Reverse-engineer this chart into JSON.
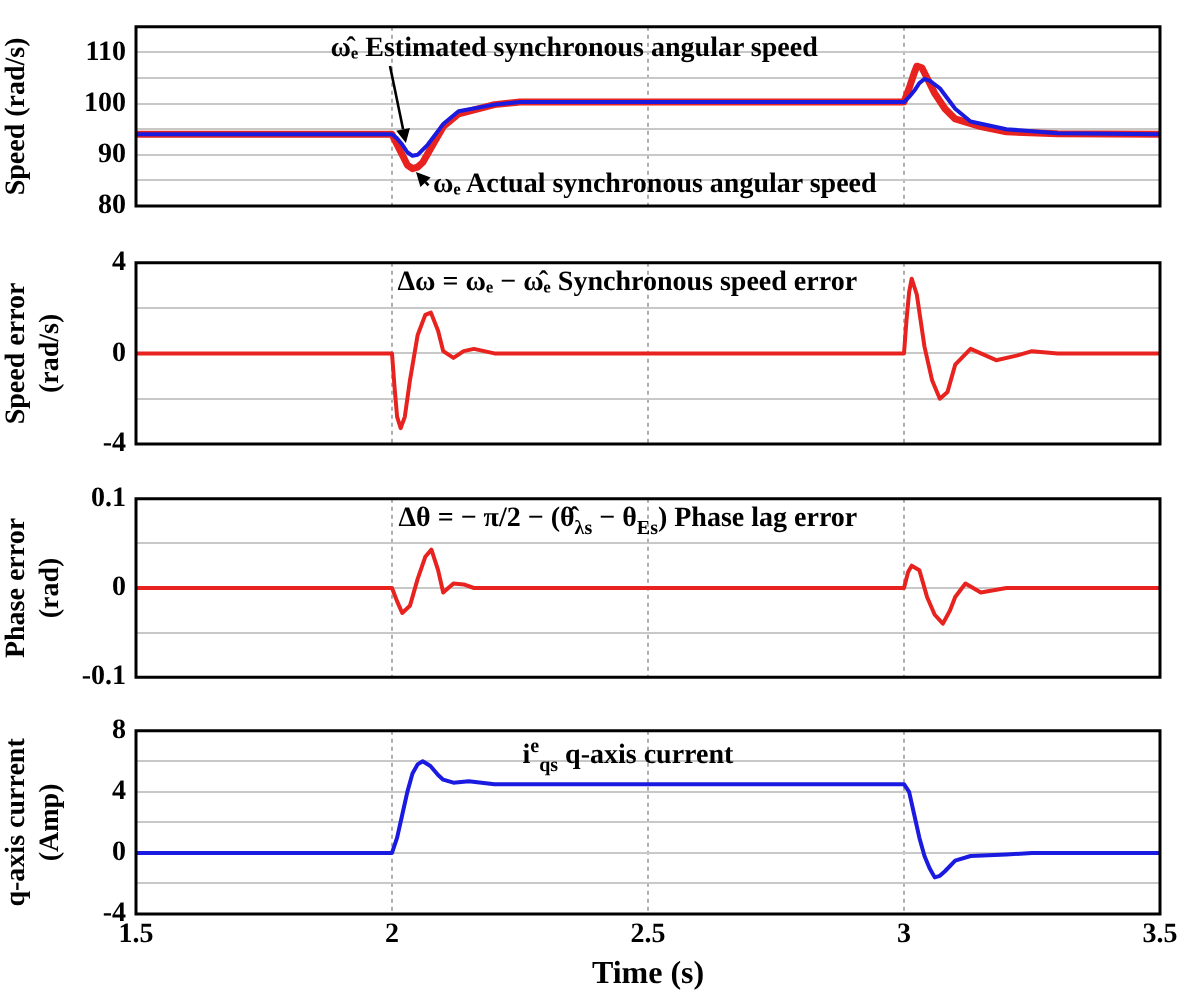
{
  "chart_data": [
    {
      "type": "line",
      "ylabel": "Speed (rad/s)",
      "xlim": [
        1.5,
        3.5
      ],
      "xticks": [
        1.5,
        2,
        2.5,
        3,
        3.5
      ],
      "ylim": [
        80,
        115
      ],
      "yticks": [
        80,
        {
          "value": 85,
          "label": null
        },
        90,
        {
          "value": 95,
          "label": null
        },
        100,
        {
          "value": 105,
          "label": null
        },
        110
      ],
      "grid": true,
      "legend": false,
      "marker": "none",
      "tick_labels": "y",
      "series": [
        {
          "name": "ω̂ₑ Estimated synchronous angular speed",
          "color": "#1a1ae0",
          "x": [
            1.5,
            2.0,
            2.01,
            2.02,
            2.03,
            2.04,
            2.05,
            2.07,
            2.1,
            2.13,
            2.2,
            2.25,
            3.0,
            3.01,
            3.02,
            3.03,
            3.04,
            3.05,
            3.07,
            3.1,
            3.13,
            3.2,
            3.3,
            3.5
          ],
          "values": [
            94,
            94,
            93.2,
            92,
            90.5,
            89.8,
            90,
            92,
            96,
            98.5,
            99.8,
            100.3,
            100.3,
            101.3,
            102.5,
            104,
            104.8,
            104.5,
            103,
            99,
            96.5,
            95,
            94.2,
            94
          ]
        },
        {
          "name": "ωₑ Actual synchronous angular speed",
          "color": "#e8231f",
          "x": [
            1.5,
            2.0,
            2.01,
            2.02,
            2.03,
            2.04,
            2.05,
            2.06,
            2.08,
            2.1,
            2.13,
            2.2,
            2.25,
            3.0,
            3.01,
            3.02,
            3.025,
            3.035,
            3.045,
            3.06,
            3.08,
            3.1,
            3.15,
            3.2,
            3.3,
            3.5
          ],
          "values": [
            94,
            94,
            92,
            90,
            88,
            87.3,
            87.6,
            88.5,
            92,
            95.5,
            98,
            99.8,
            100.3,
            100.3,
            103,
            106,
            107.3,
            107,
            105,
            102,
            99,
            97,
            95.5,
            94.5,
            94.1,
            94
          ]
        }
      ]
    },
    {
      "type": "line",
      "ylabel": "Speed error (rad/s)",
      "xlim": [
        1.5,
        3.5
      ],
      "xticks": [
        1.5,
        2,
        2.5,
        3,
        3.5
      ],
      "ylim": [
        -4,
        4
      ],
      "yticks": [
        -4,
        {
          "value": -2,
          "label": null
        },
        0,
        {
          "value": 2,
          "label": null
        },
        4
      ],
      "grid": true,
      "legend": false,
      "marker": "none",
      "tick_labels": "y",
      "annotations": [
        "Δω = ωₑ − ω̂ₑ  Synchronous speed error"
      ],
      "series": [
        {
          "color": "#e8231f",
          "x": [
            1.5,
            2.0,
            2.005,
            2.01,
            2.017,
            2.025,
            2.035,
            2.05,
            2.065,
            2.076,
            2.09,
            2.1,
            2.12,
            2.14,
            2.16,
            2.18,
            2.2,
            3.0,
            3.005,
            3.01,
            3.015,
            3.025,
            3.04,
            3.055,
            3.07,
            3.085,
            3.1,
            3.13,
            3.15,
            3.18,
            3.22,
            3.25,
            3.3,
            3.5
          ],
          "values": [
            0,
            0,
            -1.5,
            -2.8,
            -3.3,
            -2.8,
            -1.2,
            0.8,
            1.7,
            1.8,
            1,
            0.1,
            -0.2,
            0.1,
            0.2,
            0.1,
            0,
            0,
            1.5,
            2.7,
            3.3,
            2.6,
            0.3,
            -1.2,
            -2,
            -1.7,
            -0.5,
            0.2,
            0,
            -0.3,
            -0.1,
            0.1,
            0,
            0
          ]
        }
      ]
    },
    {
      "type": "line",
      "ylabel": "Phase error (rad)",
      "xlim": [
        1.5,
        3.5
      ],
      "xticks": [
        1.5,
        2,
        2.5,
        3,
        3.5
      ],
      "ylim": [
        -0.1,
        0.1
      ],
      "yticks": [
        -0.1,
        {
          "value": -0.05,
          "label": null
        },
        0,
        {
          "value": 0.05,
          "label": null
        },
        0.1
      ],
      "grid": true,
      "legend": false,
      "marker": "none",
      "tick_labels": "y",
      "annotations": [
        "Δθ = − π/2 − (θ̂$_{λs}$ − θ$_{Es}$)  Phase lag error"
      ],
      "series": [
        {
          "color": "#e8231f",
          "x": [
            1.5,
            2.0,
            2.01,
            2.02,
            2.035,
            2.05,
            2.065,
            2.077,
            2.09,
            2.1,
            2.12,
            2.14,
            2.16,
            2.2,
            3.0,
            3.008,
            3.015,
            3.03,
            3.045,
            3.06,
            3.076,
            3.09,
            3.1,
            3.12,
            3.15,
            3.2,
            3.5
          ],
          "values": [
            0,
            0,
            -0.015,
            -0.028,
            -0.02,
            0.01,
            0.035,
            0.043,
            0.02,
            -0.005,
            0.005,
            0.004,
            0,
            0,
            0,
            0.018,
            0.025,
            0.02,
            -0.01,
            -0.03,
            -0.04,
            -0.025,
            -0.01,
            0.005,
            -0.005,
            0,
            0
          ]
        }
      ]
    },
    {
      "type": "line",
      "ylabel": "q-axis current (Amp)",
      "xlabel": "Time (s)",
      "xlim": [
        1.5,
        3.5
      ],
      "xticks": [
        1.5,
        2,
        2.5,
        3,
        3.5
      ],
      "ylim": [
        -4,
        8
      ],
      "yticks": [
        -4,
        {
          "value": -2,
          "label": null
        },
        0,
        {
          "value": 2,
          "label": null
        },
        4,
        {
          "value": 6,
          "label": null
        },
        8
      ],
      "grid": true,
      "legend": false,
      "marker": "none",
      "annotations": [
        "i$^{e}$$_{qs}$  q-axis current"
      ],
      "series": [
        {
          "color": "#1a1ae0",
          "x": [
            1.5,
            2.0,
            2.01,
            2.02,
            2.03,
            2.04,
            2.05,
            2.06,
            2.075,
            2.09,
            2.1,
            2.12,
            2.15,
            2.2,
            3.0,
            3.01,
            3.02,
            3.03,
            3.04,
            3.05,
            3.06,
            3.07,
            3.08,
            3.1,
            3.13,
            3.2,
            3.25,
            3.5
          ],
          "values": [
            0,
            0,
            1,
            2.5,
            4,
            5.2,
            5.8,
            6,
            5.7,
            5.1,
            4.8,
            4.6,
            4.7,
            4.5,
            4.5,
            4,
            2.5,
            1,
            -0.2,
            -1,
            -1.6,
            -1.5,
            -1.2,
            -0.5,
            -0.2,
            -0.1,
            0,
            0
          ]
        }
      ]
    }
  ]
}
